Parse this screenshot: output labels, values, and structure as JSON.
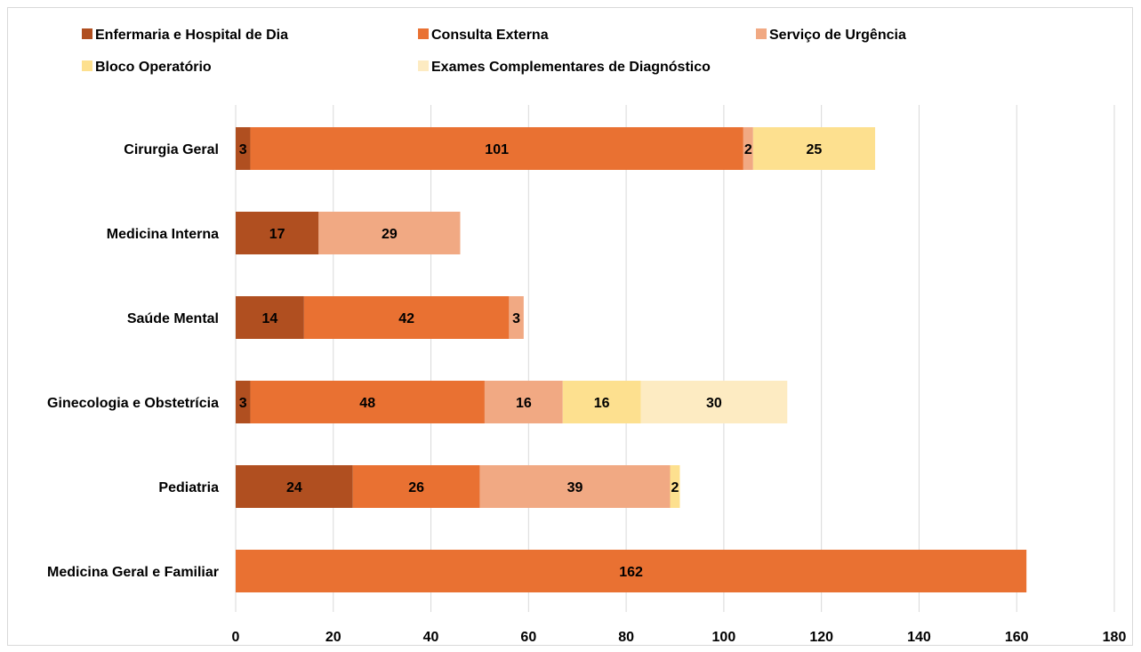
{
  "chart_data": {
    "type": "bar",
    "orientation": "horizontal",
    "stacked": true,
    "categories": [
      "Cirurgia Geral",
      "Medicina Interna",
      "Saúde Mental",
      "Ginecologia e Obstetrícia",
      "Pediatria",
      "Medicina Geral e Familiar"
    ],
    "series": [
      {
        "name": "Enfermaria e Hospital de Dia",
        "color": "#b04f20",
        "values": [
          3,
          17,
          14,
          3,
          24,
          0
        ]
      },
      {
        "name": "Consulta Externa",
        "color": "#e97132",
        "values": [
          101,
          0,
          42,
          48,
          26,
          162
        ]
      },
      {
        "name": "Serviço de Urgência",
        "color": "#f1a983",
        "values": [
          2,
          29,
          3,
          16,
          39,
          0
        ]
      },
      {
        "name": "Bloco Operatório",
        "color": "#fde08f",
        "values": [
          25,
          0,
          0,
          16,
          2,
          0
        ]
      },
      {
        "name": "Exames Complementares de Diagnóstico",
        "color": "#fdebc2",
        "values": [
          0,
          0,
          0,
          30,
          0,
          0
        ]
      }
    ],
    "xlim": [
      0,
      180
    ],
    "xticks": [
      0,
      20,
      40,
      60,
      80,
      100,
      120,
      140,
      160,
      180
    ],
    "grid": true,
    "legend_position": "top",
    "title": "",
    "xlabel": "",
    "ylabel": ""
  }
}
